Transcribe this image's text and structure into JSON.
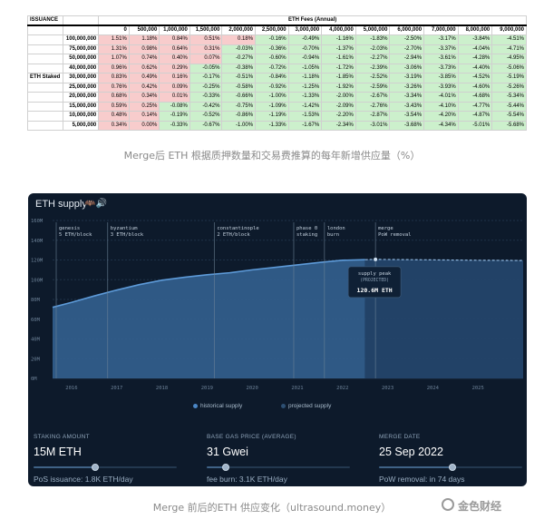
{
  "table": {
    "corner_label": "ISSUANCE",
    "group_header": "ETH Fees (Annual)",
    "row_group_label": "ETH Staked",
    "columns": [
      "0",
      "500,000",
      "1,000,000",
      "1,500,000",
      "2,000,000",
      "2,500,000",
      "3,000,000",
      "4,000,000",
      "5,000,000",
      "6,000,000",
      "7,000,000",
      "8,000,000",
      "9,000,000"
    ],
    "rows": [
      {
        "label": "100,000,000",
        "values": [
          "1.51%",
          "1.18%",
          "0.84%",
          "0.51%",
          "0.18%",
          "-0.16%",
          "-0.49%",
          "-1.16%",
          "-1.83%",
          "-2.50%",
          "-3.17%",
          "-3.84%",
          "-4.51%"
        ]
      },
      {
        "label": "75,000,000",
        "values": [
          "1.31%",
          "0.98%",
          "0.64%",
          "0.31%",
          "-0.03%",
          "-0.36%",
          "-0.70%",
          "-1.37%",
          "-2.03%",
          "-2.70%",
          "-3.37%",
          "-4.04%",
          "-4.71%"
        ]
      },
      {
        "label": "50,000,000",
        "values": [
          "1.07%",
          "0.74%",
          "0.40%",
          "0.07%",
          "-0.27%",
          "-0.60%",
          "-0.94%",
          "-1.61%",
          "-2.27%",
          "-2.94%",
          "-3.61%",
          "-4.28%",
          "-4.95%"
        ]
      },
      {
        "label": "40,000,000",
        "values": [
          "0.96%",
          "0.62%",
          "0.29%",
          "-0.05%",
          "-0.38%",
          "-0.72%",
          "-1.05%",
          "-1.72%",
          "-2.39%",
          "-3.06%",
          "-3.73%",
          "-4.40%",
          "-5.06%"
        ]
      },
      {
        "label": "30,000,000",
        "values": [
          "0.83%",
          "0.49%",
          "0.16%",
          "-0.17%",
          "-0.51%",
          "-0.84%",
          "-1.18%",
          "-1.85%",
          "-2.52%",
          "-3.19%",
          "-3.85%",
          "-4.52%",
          "-5.19%"
        ]
      },
      {
        "label": "25,000,000",
        "values": [
          "0.76%",
          "0.42%",
          "0.09%",
          "-0.25%",
          "-0.58%",
          "-0.92%",
          "-1.25%",
          "-1.92%",
          "-2.59%",
          "-3.26%",
          "-3.93%",
          "-4.60%",
          "-5.26%"
        ]
      },
      {
        "label": "20,000,000",
        "values": [
          "0.68%",
          "0.34%",
          "0.01%",
          "-0.33%",
          "-0.66%",
          "-1.00%",
          "-1.33%",
          "-2.00%",
          "-2.67%",
          "-3.34%",
          "-4.01%",
          "-4.68%",
          "-5.34%"
        ]
      },
      {
        "label": "15,000,000",
        "values": [
          "0.59%",
          "0.25%",
          "-0.08%",
          "-0.42%",
          "-0.75%",
          "-1.09%",
          "-1.42%",
          "-2.09%",
          "-2.76%",
          "-3.43%",
          "-4.10%",
          "-4.77%",
          "-5.44%"
        ]
      },
      {
        "label": "10,000,000",
        "values": [
          "0.48%",
          "0.14%",
          "-0.19%",
          "-0.52%",
          "-0.86%",
          "-1.19%",
          "-1.53%",
          "-2.20%",
          "-2.87%",
          "-3.54%",
          "-4.20%",
          "-4.87%",
          "-5.54%"
        ]
      },
      {
        "label": "5,000,000",
        "values": [
          "0.34%",
          "0.00%",
          "-0.33%",
          "-0.67%",
          "-1.00%",
          "-1.33%",
          "-1.67%",
          "-2.34%",
          "-3.01%",
          "-3.68%",
          "-4.34%",
          "-5.01%",
          "-5.68%"
        ]
      }
    ]
  },
  "caption_top": "Merge后 ETH 根据质押数量和交易费推算的每年新增供应量（%）",
  "caption_bottom": "Merge 前后的ETH 供应变化（ultrasound.money）",
  "watermark": "金色财经",
  "panel": {
    "title": "ETH supply",
    "title_icons": "🦇🔊",
    "legend_historical": "historical supply",
    "legend_projected": "projected supply",
    "stats": [
      {
        "label": "STAKING AMOUNT",
        "value": "15M ETH",
        "sub": "PoS issuance: 1.8K ETH/day",
        "slider_level": 0.43
      },
      {
        "label": "BASE GAS PRICE (AVERAGE)",
        "value": "31 Gwei",
        "sub": "fee burn: 3.1K ETH/day",
        "slider_level": 0.13
      },
      {
        "label": "MERGE DATE",
        "value": "25 Sep 2022",
        "sub": "PoW removal: in 74 days",
        "slider_level": 0.51
      }
    ],
    "colors": {
      "background": "#0d1a2b",
      "historical": "#4a86c5",
      "projected": "#2d4f72",
      "marker": "#7a8ea3"
    }
  },
  "chart_data": {
    "type": "area",
    "title": "ETH supply",
    "ylabel": "",
    "xlabel": "",
    "y_ticks": [
      "0M",
      "20M",
      "40M",
      "60M",
      "80M",
      "100M",
      "120M",
      "140M",
      "160M"
    ],
    "ylim": [
      0,
      160
    ],
    "x_ticks": [
      "2016",
      "2017",
      "2018",
      "2019",
      "2020",
      "2021",
      "2022",
      "2023",
      "2024",
      "2025"
    ],
    "xlim": [
      2015.58,
      2026.0
    ],
    "series": [
      {
        "name": "historical supply",
        "x": [
          2015.58,
          2016,
          2016.5,
          2017,
          2017.5,
          2018,
          2018.5,
          2019,
          2019.5,
          2020,
          2020.5,
          2021,
          2021.5,
          2022,
          2022.5
        ],
        "values": [
          72,
          77,
          83.5,
          89.5,
          95,
          99.5,
          102.5,
          105,
          107,
          110,
          112.5,
          115,
          117.5,
          119.7,
          120.3
        ]
      },
      {
        "name": "projected supply",
        "x": [
          2022.5,
          2022.73,
          2023,
          2023.5,
          2024,
          2024.5,
          2025,
          2025.5,
          2026
        ],
        "values": [
          120.3,
          120.6,
          120.5,
          120.3,
          120.1,
          119.9,
          119.7,
          119.6,
          119.4
        ]
      }
    ],
    "markers": [
      {
        "x": 2015.58,
        "line1": "genesis",
        "line2": "5 ETH/block"
      },
      {
        "x": 2016.8,
        "line1": "byzantium",
        "line2": "3 ETH/block"
      },
      {
        "x": 2019.16,
        "line1": "constantinople",
        "line2": "2 ETH/block"
      },
      {
        "x": 2020.92,
        "line1": "phase 0",
        "line2": "staking"
      },
      {
        "x": 2021.6,
        "line1": "london",
        "line2": "burn"
      },
      {
        "x": 2022.73,
        "line1": "merge",
        "line2": "PoW removal"
      }
    ],
    "tooltip": {
      "title": "supply peak",
      "subtitle": "(PROJECTED)",
      "value": "120.6M ETH",
      "x": 2022.73,
      "y": 120.6
    },
    "grid": true,
    "legend": "bottom-center"
  }
}
